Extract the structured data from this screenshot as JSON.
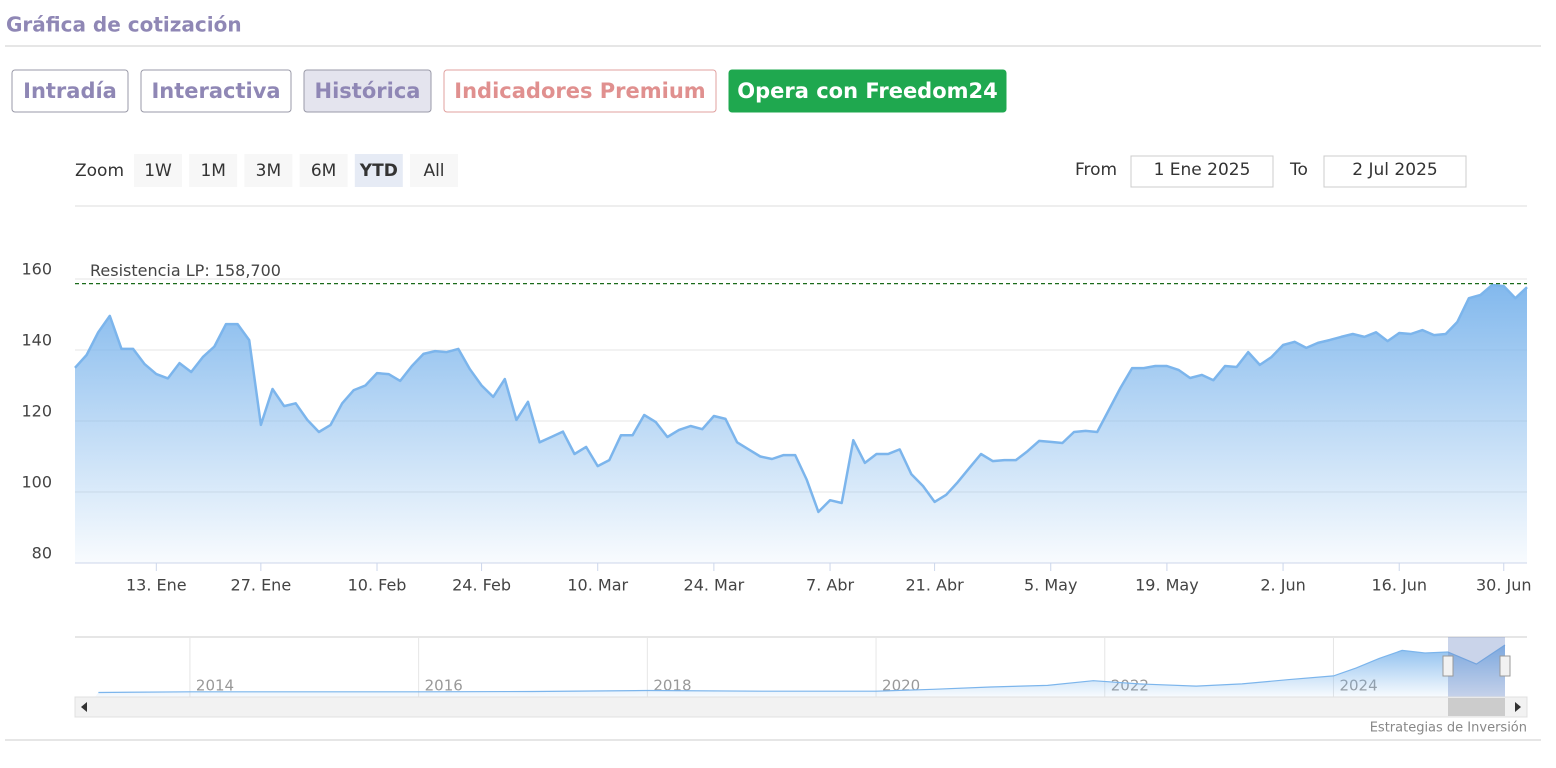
{
  "header": {
    "title": "Gráfica de cotización"
  },
  "tabs": [
    "Intradía",
    "Interactiva",
    "Histórica",
    "Indicadores Premium",
    "Opera con Freedom24"
  ],
  "range_selector": {
    "zoom_label": "Zoom",
    "buttons": [
      "1W",
      "1M",
      "3M",
      "6M",
      "YTD",
      "All"
    ],
    "selected_index": 4,
    "from_label": "From",
    "from": "1 Ene 2025",
    "to_label": "To",
    "to": "2 Jul 2025"
  },
  "chart_data": {
    "type": "area",
    "categories": [
      null,
      null,
      null,
      null,
      null,
      null,
      null,
      "13. Ene",
      null,
      null,
      null,
      null,
      null,
      null,
      null,
      null,
      "27. Ene",
      null,
      null,
      null,
      null,
      null,
      null,
      null,
      null,
      null,
      "10. Feb",
      null,
      null,
      null,
      null,
      null,
      null,
      null,
      null,
      "24. Feb",
      null,
      null,
      null,
      null,
      null,
      null,
      null,
      null,
      null,
      "10. Mar",
      null,
      null,
      null,
      null,
      null,
      null,
      null,
      null,
      null,
      "24. Mar",
      null,
      null,
      null,
      null,
      null,
      null,
      null,
      null,
      null,
      "7. Abr",
      null,
      null,
      null,
      null,
      null,
      null,
      null,
      null,
      "21. Abr",
      null,
      null,
      null,
      null,
      null,
      null,
      null,
      null,
      null,
      "5. May",
      null,
      null,
      null,
      null,
      null,
      null,
      null,
      null,
      null,
      "19. May",
      null,
      null,
      null,
      null,
      null,
      null,
      null,
      null,
      null,
      "2. Jun",
      null,
      null,
      null,
      null,
      null,
      null,
      null,
      null,
      null,
      "16. Jun",
      null,
      null,
      null,
      null,
      null,
      null,
      null,
      null,
      "30. Jun",
      null,
      null
    ],
    "series": [
      {
        "color": "#7cb5ec",
        "values": [
          135,
          138.6,
          145,
          149.6,
          140.3,
          140.3,
          136,
          133.2,
          132,
          136.3,
          133.8,
          138,
          141,
          147.3,
          147.3,
          142.8,
          118.9,
          129,
          124.2,
          125,
          120.3,
          116.9,
          118.9,
          125,
          128.7,
          130,
          133.5,
          133.2,
          131.3,
          135.5,
          138.9,
          139.7,
          139.4,
          140.3,
          134.6,
          130,
          126.8,
          131.8,
          120.3,
          125.4,
          114,
          115.5,
          117,
          110.7,
          112.7,
          107.3,
          109,
          116,
          116,
          121.7,
          119.7,
          115.5,
          117.5,
          118.6,
          117.7,
          121.4,
          120.6,
          114,
          112,
          110,
          109.3,
          110.4,
          110.4,
          103.4,
          94.4,
          97.7,
          96.9,
          114.6,
          108.2,
          110.7,
          110.7,
          112,
          105,
          101.7,
          97.2,
          99.2,
          102.8,
          106.8,
          110.7,
          108.7,
          109,
          109,
          111.5,
          114.4,
          114.1,
          113.8,
          116.9,
          117.2,
          116.9,
          123.1,
          129.3,
          134.9,
          134.9,
          135.5,
          135.5,
          134.4,
          132.1,
          133,
          131.5,
          135.5,
          135.2,
          139.4,
          135.8,
          138,
          141.4,
          142.3,
          140.6,
          142,
          142.8,
          143.7,
          144.5,
          143.7,
          145,
          142.5,
          144.8,
          144.5,
          145.6,
          144.2,
          144.5,
          147.9,
          154.6,
          155.5,
          158.3,
          158,
          154.6,
          157.7
        ]
      }
    ],
    "ylim": [
      80,
      160
    ],
    "yticks": [
      80,
      100,
      120,
      140,
      160
    ],
    "grid": true,
    "annotations": [
      {
        "value": 158.7,
        "label": "Resistencia LP: 158,700",
        "color": "#1a6b1a"
      }
    ]
  },
  "navigator": {
    "x": [
      2013.2,
      2014,
      2015,
      2016,
      2017,
      2018,
      2019,
      2020,
      2020.5,
      2021,
      2021.5,
      2021.9,
      2022.3,
      2022.8,
      2023.2,
      2023.6,
      2024,
      2024.2,
      2024.4,
      2024.6,
      2024.8,
      2025,
      2025.25,
      2025.5
    ],
    "values": [
      8,
      10,
      10,
      10,
      11,
      14,
      12,
      12,
      18,
      25,
      30,
      45,
      35,
      28,
      35,
      48,
      60,
      85,
      115,
      140,
      132,
      135,
      97,
      157
    ],
    "xlim": [
      2013.17,
      2025.5
    ],
    "xticks": [
      2014,
      2016,
      2018,
      2020,
      2022,
      2024
    ]
  },
  "credits": "Estrategias de Inversión"
}
